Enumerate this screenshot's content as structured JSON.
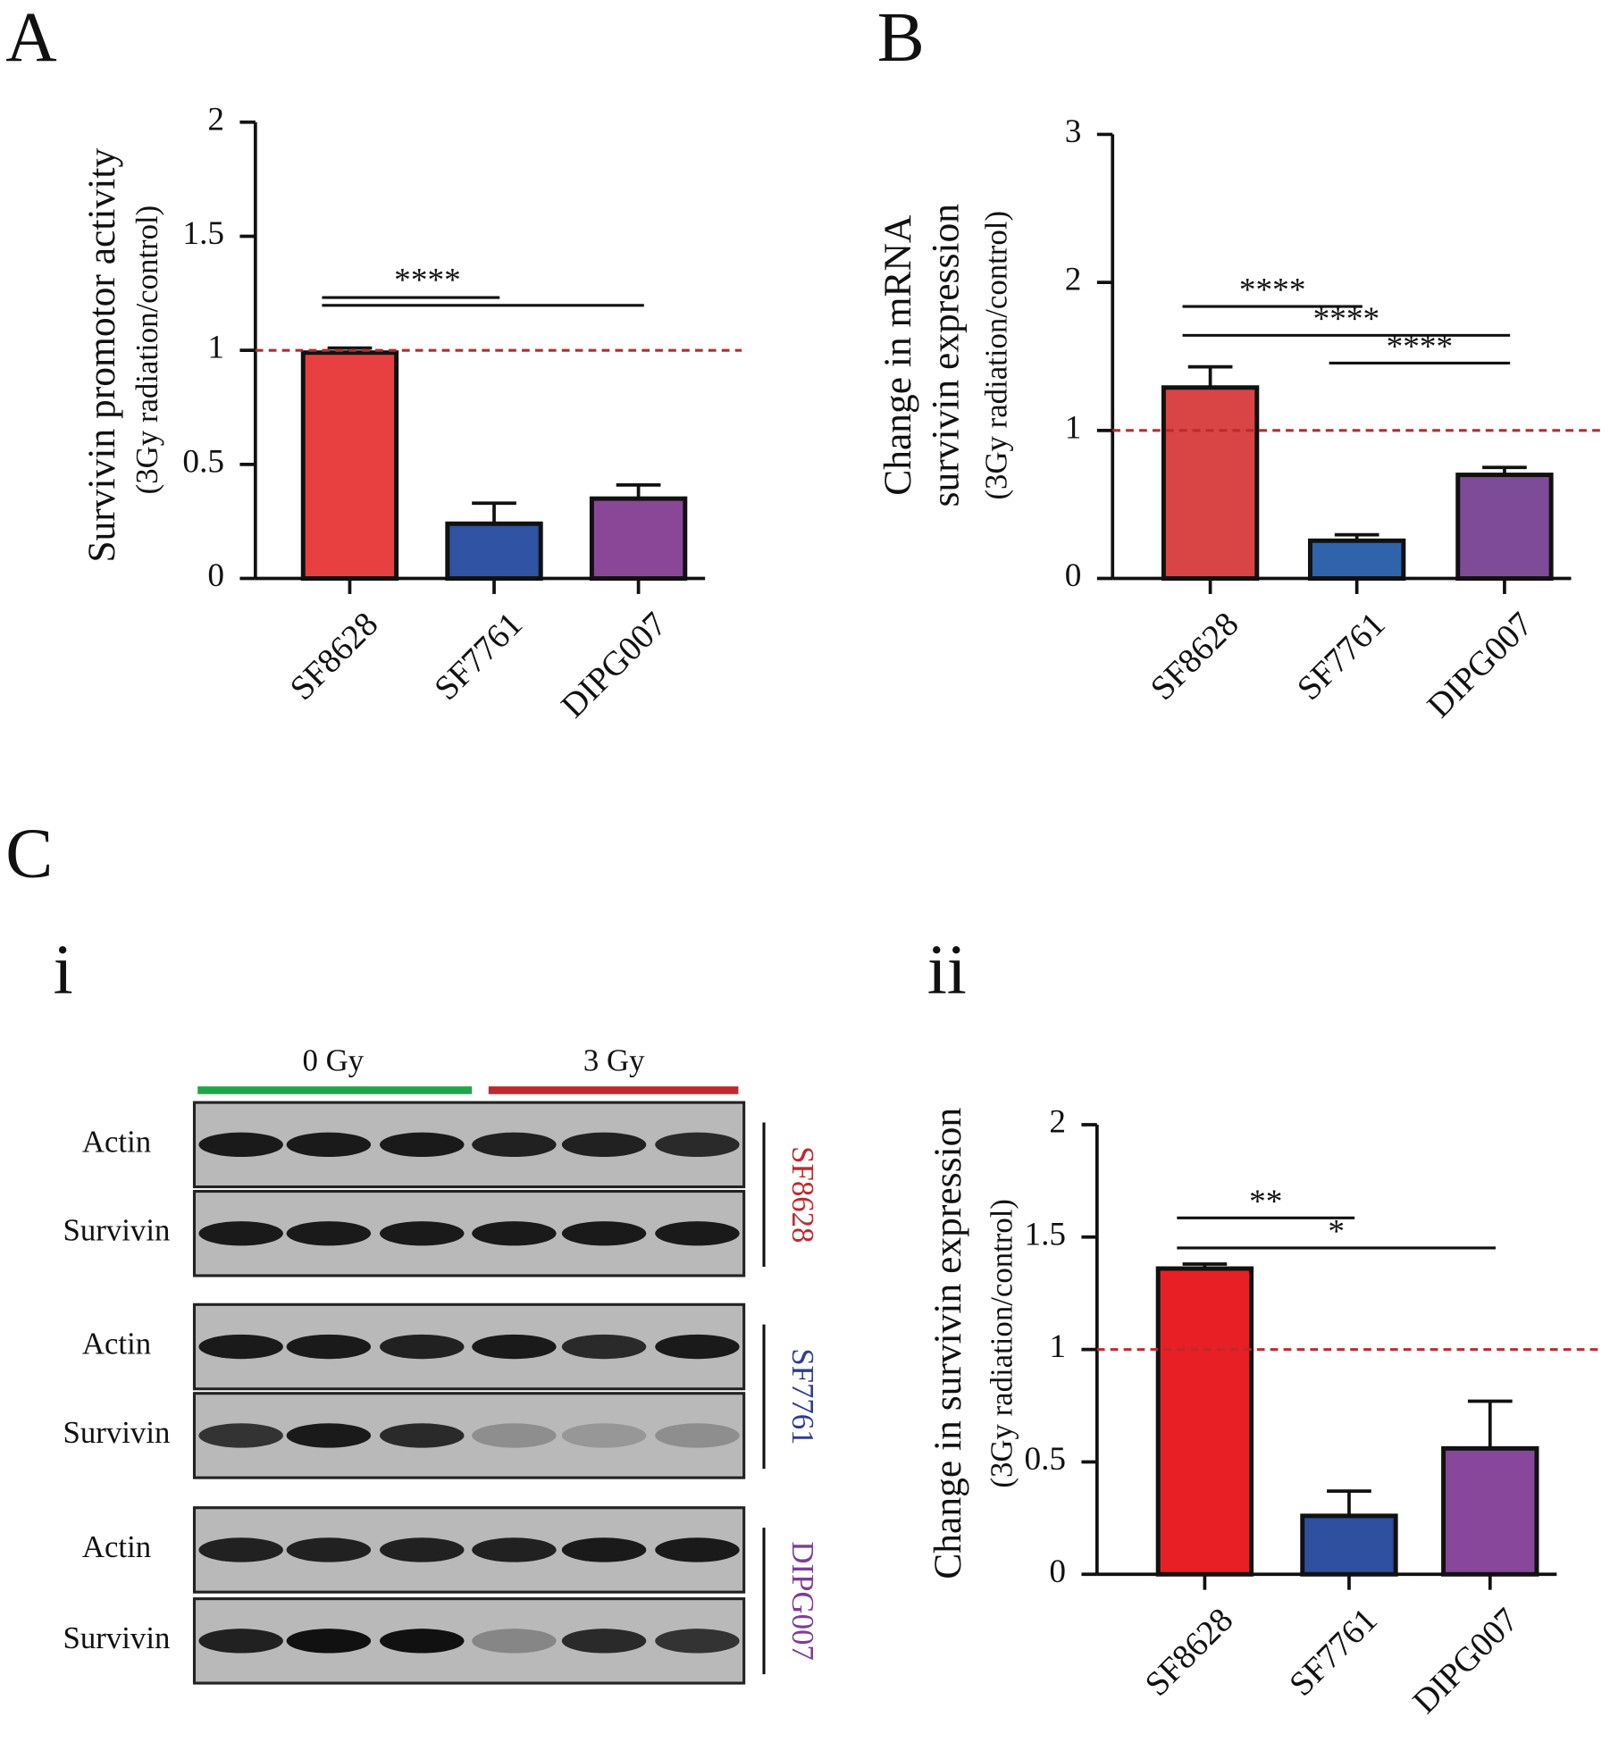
{
  "section_label": "C",
  "blot": {
    "panel": "i",
    "conditions": [
      {
        "label": "0 Gy",
        "color": "#1fa64a"
      },
      {
        "label": "3 Gy",
        "color": "#c0282d"
      }
    ],
    "groups": [
      {
        "cell_line": "SF8628",
        "color": "#c0282d",
        "rows": [
          "Actin",
          "Survivin"
        ]
      },
      {
        "cell_line": "SF7761",
        "color": "#2e3d8f",
        "rows": [
          "Actin",
          "Survivin"
        ]
      },
      {
        "cell_line": "DIPG007",
        "color": "#7b3f98",
        "rows": [
          "Actin",
          "Survivin"
        ]
      }
    ]
  },
  "chart_data": [
    {
      "type": "bar",
      "panel": "A",
      "ylabel": "Survivin promotor activity",
      "ylabel_sub": "(3Gy radiation/control)",
      "categories": [
        "SF8628",
        "SF7761",
        "DIPG007"
      ],
      "values": [
        0.99,
        0.24,
        0.35
      ],
      "errors": [
        0.02,
        0.09,
        0.06
      ],
      "colors": [
        "#e84040",
        "#3053a3",
        "#8a4798"
      ],
      "ylim": [
        0,
        2
      ],
      "yticks": [
        0,
        0.5,
        1,
        1.5,
        2
      ],
      "reference_line": 1,
      "reference_color": "#c0282d",
      "significance": [
        {
          "from": 0,
          "to": 1,
          "label": "****"
        },
        {
          "from": 0,
          "to": 2
        }
      ]
    },
    {
      "type": "bar",
      "panel": "B",
      "ylabel": "Change in mRNA",
      "ylabel_line2": "survivin expression",
      "ylabel_sub": "(3Gy radiation/control)",
      "categories": [
        "SF8628",
        "SF7761",
        "DIPG007"
      ],
      "values": [
        1.29,
        0.255,
        0.7
      ],
      "errors": [
        0.14,
        0.04,
        0.05
      ],
      "colors": [
        "#d94444",
        "#2f64ad",
        "#7e4b98"
      ],
      "ylim": [
        0,
        3
      ],
      "yticks": [
        0,
        1,
        2,
        3
      ],
      "reference_line": 1,
      "reference_color": "#c0282d",
      "significance": [
        {
          "from": 0,
          "to": 1,
          "label": "****"
        },
        {
          "from": 0,
          "to": 2,
          "label": "****"
        },
        {
          "from": 1,
          "to": 2,
          "label": "****"
        }
      ]
    },
    {
      "type": "bar",
      "panel": "ii",
      "ylabel": "Change in survivin expression",
      "ylabel_sub": "(3Gy radiation/control)",
      "categories": [
        "SF8628",
        "SF7761",
        "DIPG007"
      ],
      "values": [
        1.36,
        0.26,
        0.56
      ],
      "errors": [
        0.02,
        0.11,
        0.21
      ],
      "colors": [
        "#e82025",
        "#2f4f9f",
        "#88479a"
      ],
      "ylim": [
        0,
        2
      ],
      "yticks": [
        0,
        0.5,
        1,
        1.5,
        2
      ],
      "reference_line": 1,
      "reference_color": "#c0282d",
      "significance": [
        {
          "from": 0,
          "to": 1,
          "label": "**"
        },
        {
          "from": 0,
          "to": 2,
          "label": "*"
        }
      ]
    }
  ]
}
